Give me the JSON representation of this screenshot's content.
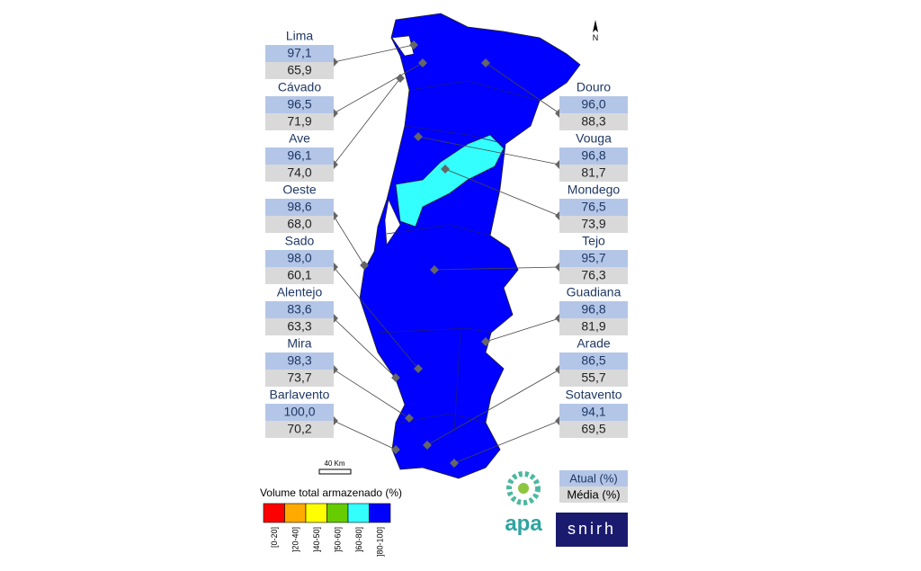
{
  "compass": "N",
  "scale_label": "40  Km",
  "legend": {
    "title": "Volume total armazenado (%)",
    "items": [
      {
        "label": "[0-20]",
        "color": "#ff0000"
      },
      {
        "label": "]20-40]",
        "color": "#ffaa00"
      },
      {
        "label": "]40-50]",
        "color": "#ffff00"
      },
      {
        "label": "]50-60]",
        "color": "#66cc00"
      },
      {
        "label": "]60-80]",
        "color": "#33ffff"
      },
      {
        "label": "]80-100]",
        "color": "#0000ff"
      }
    ]
  },
  "key": {
    "current": "Atual (%)",
    "average": "Média (%)"
  },
  "logos": {
    "apa": "apa",
    "snirh": "snirh"
  },
  "basins_left": [
    {
      "name": "Lima",
      "current": "97,1",
      "average": "65,9"
    },
    {
      "name": "Cávado",
      "current": "96,5",
      "average": "71,9"
    },
    {
      "name": "Ave",
      "current": "96,1",
      "average": "74,0"
    },
    {
      "name": "Oeste",
      "current": "98,6",
      "average": "68,0"
    },
    {
      "name": "Sado",
      "current": "98,0",
      "average": "60,1"
    },
    {
      "name": "Alentejo",
      "current": "83,6",
      "average": "63,3"
    },
    {
      "name": "Mira",
      "current": "98,3",
      "average": "73,7"
    },
    {
      "name": "Barlavento",
      "current": "100,0",
      "average": "70,2"
    }
  ],
  "basins_right": [
    {
      "name": "Douro",
      "current": "96,0",
      "average": "88,3"
    },
    {
      "name": "Vouga",
      "current": "96,8",
      "average": "81,7"
    },
    {
      "name": "Mondego",
      "current": "76,5",
      "average": "73,9"
    },
    {
      "name": "Tejo",
      "current": "95,7",
      "average": "76,3"
    },
    {
      "name": "Guadiana",
      "current": "96,8",
      "average": "81,9"
    },
    {
      "name": "Arade",
      "current": "86,5",
      "average": "55,7"
    },
    {
      "name": "Sotavento",
      "current": "94,1",
      "average": "69,5"
    }
  ]
}
